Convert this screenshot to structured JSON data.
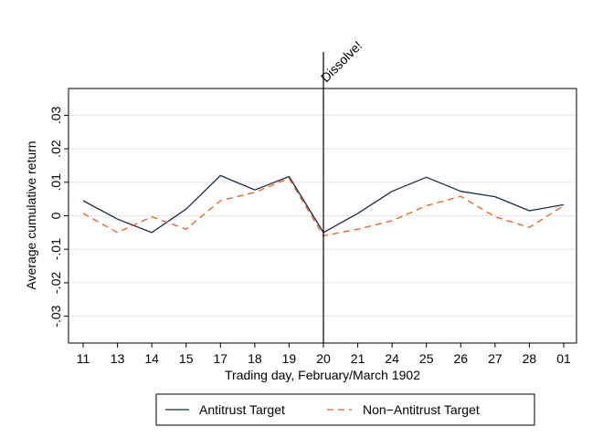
{
  "chart_data": {
    "type": "line",
    "xlabel": "Trading day, February/March 1902",
    "ylabel": "Average cumulative return",
    "categories": [
      "11",
      "13",
      "14",
      "15",
      "17",
      "18",
      "19",
      "20",
      "21",
      "24",
      "25",
      "26",
      "27",
      "28",
      "01"
    ],
    "y_ticks": [
      -0.03,
      -0.02,
      -0.01,
      0,
      0.01,
      0.02,
      0.03
    ],
    "y_tick_labels": [
      "-.03",
      "-.02",
      "-.01",
      "0",
      ".01",
      ".02",
      ".03"
    ],
    "ylim": [
      -0.038,
      0.038
    ],
    "grid": true,
    "legend_position": "bottom",
    "series": [
      {
        "name": "Antitrust Target",
        "color": "#1a2a4a",
        "dash": "solid",
        "values": [
          0.0045,
          -0.001,
          -0.005,
          0.002,
          0.012,
          0.0077,
          0.0117,
          -0.005,
          0.0007,
          0.0073,
          0.0115,
          0.0073,
          0.0057,
          0.0015,
          0.0033
        ]
      },
      {
        "name": "Non−Antitrust Target",
        "color": "#f05a1e",
        "dash": "dashed",
        "values": [
          0.0007,
          -0.005,
          -0.0003,
          -0.004,
          0.0045,
          0.007,
          0.0112,
          -0.006,
          -0.004,
          -0.0015,
          0.003,
          0.0058,
          -0.0003,
          -0.0035,
          0.003
        ]
      }
    ],
    "annotations": [
      {
        "text": "Dissolve!",
        "x_category": "20"
      }
    ]
  }
}
